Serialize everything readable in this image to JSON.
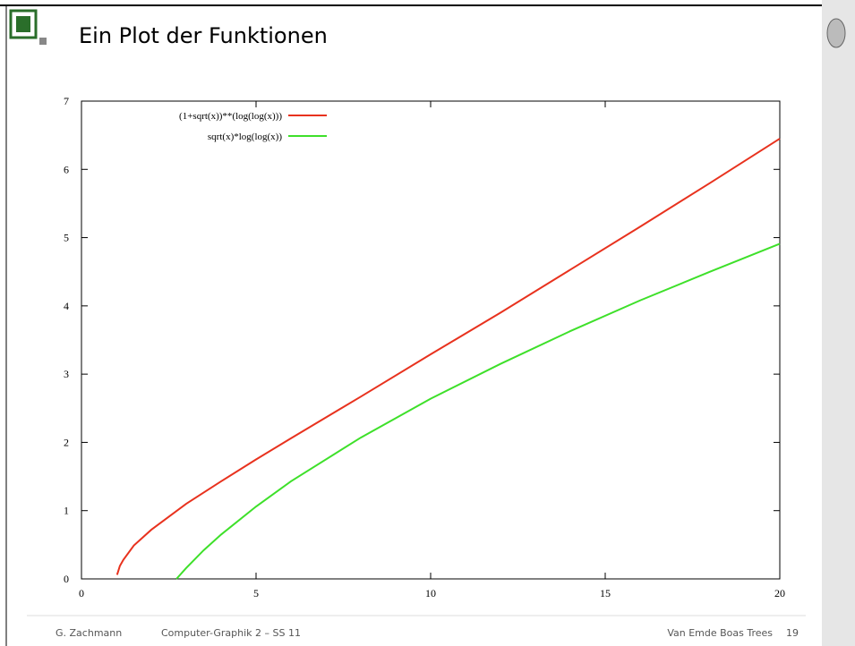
{
  "slide": {
    "title": "Ein Plot der Funktionen",
    "footer_author": "G. Zachmann",
    "footer_course": "Computer-Graphik 2 – SS 11",
    "footer_topic": "Van Emde Boas Trees",
    "page_number": "19"
  },
  "chart_data": {
    "type": "line",
    "series": [
      {
        "name": "(1+sqrt(x))**(log(log(x)))",
        "color": "#e8321e",
        "x": [
          1.02,
          1.1,
          1.2,
          1.5,
          2,
          3,
          4,
          5,
          6,
          8,
          10,
          12,
          14,
          16,
          18,
          20
        ],
        "values": [
          0.06,
          0.19,
          0.28,
          0.49,
          0.72,
          1.1,
          1.43,
          1.75,
          2.06,
          2.67,
          3.29,
          3.9,
          4.53,
          5.16,
          5.8,
          6.45
        ]
      },
      {
        "name": "sqrt(x)*log(log(x))",
        "color": "#3ee02a",
        "x": [
          2.72,
          3,
          3.5,
          4,
          5,
          6,
          8,
          10,
          12,
          14,
          16,
          18,
          20
        ],
        "values": [
          0,
          0.16,
          0.42,
          0.65,
          1.06,
          1.43,
          2.07,
          2.64,
          3.15,
          3.63,
          4.08,
          4.5,
          4.91
        ]
      }
    ],
    "xlim": [
      0,
      20
    ],
    "xticks": [
      0,
      5,
      10,
      15,
      20
    ],
    "ylim": [
      0,
      7
    ],
    "yticks": [
      0,
      1,
      2,
      3,
      4,
      5,
      6,
      7
    ],
    "legend": "top-left"
  }
}
